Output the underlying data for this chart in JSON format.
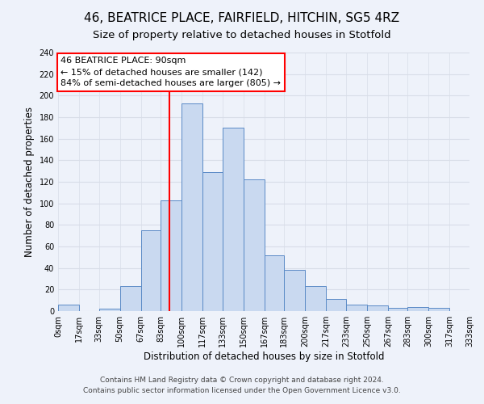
{
  "title": "46, BEATRICE PLACE, FAIRFIELD, HITCHIN, SG5 4RZ",
  "subtitle": "Size of property relative to detached houses in Stotfold",
  "xlabel": "Distribution of detached houses by size in Stotfold",
  "ylabel": "Number of detached properties",
  "bin_edges": [
    0,
    17,
    33,
    50,
    67,
    83,
    100,
    117,
    133,
    150,
    167,
    183,
    200,
    217,
    233,
    250,
    267,
    283,
    300,
    317,
    333
  ],
  "bar_heights": [
    6,
    0,
    2,
    23,
    75,
    103,
    193,
    129,
    170,
    122,
    52,
    38,
    23,
    11,
    6,
    5,
    3,
    4,
    3,
    0
  ],
  "bar_color": "#c9d9f0",
  "bar_edge_color": "#5a8ac6",
  "red_line_x": 90,
  "annotation_line1": "46 BEATRICE PLACE: 90sqm",
  "annotation_line2": "← 15% of detached houses are smaller (142)",
  "annotation_line3": "84% of semi-detached houses are larger (805) →",
  "annotation_box_color": "white",
  "annotation_box_edge_color": "red",
  "tick_labels": [
    "0sqm",
    "17sqm",
    "33sqm",
    "50sqm",
    "67sqm",
    "83sqm",
    "100sqm",
    "117sqm",
    "133sqm",
    "150sqm",
    "167sqm",
    "183sqm",
    "200sqm",
    "217sqm",
    "233sqm",
    "250sqm",
    "267sqm",
    "283sqm",
    "300sqm",
    "317sqm",
    "333sqm"
  ],
  "ylim": [
    0,
    240
  ],
  "yticks": [
    0,
    20,
    40,
    60,
    80,
    100,
    120,
    140,
    160,
    180,
    200,
    220,
    240
  ],
  "footer1": "Contains HM Land Registry data © Crown copyright and database right 2024.",
  "footer2": "Contains public sector information licensed under the Open Government Licence v3.0.",
  "background_color": "#eef2fa",
  "grid_color": "#d8dde8",
  "title_fontsize": 11,
  "subtitle_fontsize": 9.5,
  "axis_label_fontsize": 8.5,
  "tick_fontsize": 7,
  "annotation_fontsize": 8,
  "footer_fontsize": 6.5
}
